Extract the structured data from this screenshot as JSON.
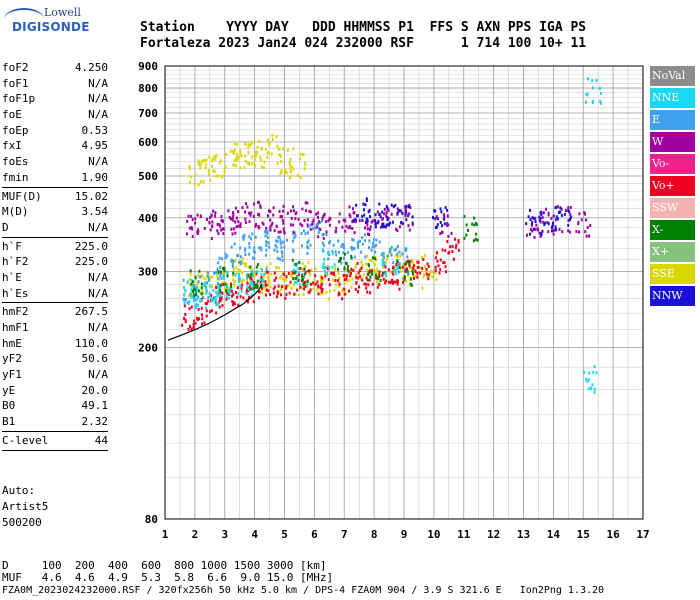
{
  "logo": {
    "brand": "Lowell",
    "product": "DIGISONDE"
  },
  "header": {
    "line1": "Station    YYYY DAY   DDD HHMMSS P1  FFS S AXN PPS IGA PS",
    "line2": "Fortaleza 2023 Jan24 024 232000 RSF      1 714 100 10+ 11"
  },
  "params": [
    {
      "label": "foF2",
      "value": "4.250"
    },
    {
      "label": "foF1",
      "value": "N/A"
    },
    {
      "label": "foF1p",
      "value": "N/A"
    },
    {
      "label": "foE",
      "value": "N/A"
    },
    {
      "label": "foEp",
      "value": "0.53"
    },
    {
      "label": "fxI",
      "value": "4.95"
    },
    {
      "label": "foEs",
      "value": "N/A"
    },
    {
      "label": "fmin",
      "value": "1.90"
    },
    {
      "sep": true
    },
    {
      "label": "MUF(D)",
      "value": "15.02"
    },
    {
      "label": "M(D)",
      "value": "3.54"
    },
    {
      "label": "D",
      "value": "N/A"
    },
    {
      "sep": true
    },
    {
      "label": "h`F",
      "value": "225.0"
    },
    {
      "label": "h`F2",
      "value": "225.0"
    },
    {
      "label": "h`E",
      "value": "N/A"
    },
    {
      "label": "h`Es",
      "value": "N/A"
    },
    {
      "sep": true
    },
    {
      "label": "hmF2",
      "value": "267.5"
    },
    {
      "label": "hmF1",
      "value": "N/A"
    },
    {
      "label": "hmE",
      "value": "110.0"
    },
    {
      "label": "yF2",
      "value": "50.6"
    },
    {
      "label": "yF1",
      "value": "N/A"
    },
    {
      "label": "yE",
      "value": "20.0"
    },
    {
      "label": "B0",
      "value": "49.1"
    },
    {
      "label": "B1",
      "value": "2.32"
    },
    {
      "sep": true
    },
    {
      "label": "C-level",
      "value": "44"
    },
    {
      "sep": true
    }
  ],
  "auto": {
    "line1": "Auto:",
    "line2": "Artist5",
    "line3": "500200"
  },
  "legend": [
    {
      "label": "NoVal",
      "bg": "#8c8c8c",
      "fg": "#ffffff"
    },
    {
      "label": "NNE",
      "bg": "#1ad8f0",
      "fg": "#ffffff"
    },
    {
      "label": "E",
      "bg": "#3fa0f0",
      "fg": "#ffffff"
    },
    {
      "label": "W",
      "bg": "#a000a0",
      "fg": "#ffffff"
    },
    {
      "label": "Vo-",
      "bg": "#f0208c",
      "fg": "#ffffff"
    },
    {
      "label": "Vo+",
      "bg": "#ee0022",
      "fg": "#ffffff"
    },
    {
      "label": "SSW",
      "bg": "#f5b2b2",
      "fg": "#ffffff"
    },
    {
      "label": "X-",
      "bg": "#008000",
      "fg": "#ffffff"
    },
    {
      "label": "X+",
      "bg": "#88c080",
      "fg": "#ffffff"
    },
    {
      "label": "SSE",
      "bg": "#d8d800",
      "fg": "#ffffff"
    },
    {
      "label": "NNW",
      "bg": "#1a10d8",
      "fg": "#ffffff"
    }
  ],
  "footer": {
    "line1": "D     100  200  400  600  800 1000 1500 3000 [km]",
    "line2": "MUF   4.6  4.6  4.9  5.3  5.8  6.6  9.0 15.0 [MHz]",
    "line3": "FZA0M_2023024232000.RSF / 320fx256h 50 kHz 5.0 km / DPS-4 FZA0M 904 / 3.9 S 321.6 E   Ion2Png 1.3.20"
  },
  "chart_data": {
    "type": "scatter",
    "title": "",
    "xlabel": "",
    "ylabel": "",
    "x_ticks": [
      1,
      2,
      3,
      4,
      5,
      6,
      7,
      8,
      9,
      10,
      11,
      12,
      13,
      14,
      15,
      16,
      17
    ],
    "y_ticks": [
      80,
      200,
      300,
      400,
      500,
      600,
      700,
      800,
      900
    ],
    "xlim": [
      1,
      17
    ],
    "ylim": [
      80,
      900
    ],
    "y_scale": "log",
    "grid": true,
    "legend_position": "right",
    "trace_profile": {
      "name": "",
      "x": [
        1.1,
        1.5,
        2.0,
        2.5,
        3.0,
        3.3,
        3.6,
        3.9,
        4.1,
        4.25
      ],
      "y": [
        208,
        213,
        220,
        228,
        238,
        245,
        252,
        262,
        270,
        280
      ]
    },
    "clusters": [
      {
        "name": "SSE",
        "x": [
          2.0,
          2.4,
          2.8,
          3.2,
          3.5,
          3.8,
          4.2,
          4.6,
          5.0,
          5.4,
          5.8,
          6.2,
          6.6,
          7.0,
          7.4,
          7.8,
          8.2,
          8.6,
          9.0,
          9.4,
          9.8
        ],
        "y": [
          280,
          285,
          290,
          295,
          300,
          305,
          290,
          295,
          280,
          285,
          300,
          275,
          290,
          285,
          300,
          310,
          305,
          320,
          300,
          295,
          310
        ]
      },
      {
        "name": "SSE",
        "x": [
          2.0,
          2.4,
          2.8,
          3.2,
          3.5,
          3.9,
          4.2,
          4.6,
          5.0,
          5.4
        ],
        "y": [
          510,
          520,
          535,
          550,
          560,
          575,
          560,
          590,
          545,
          530
        ]
      },
      {
        "name": "E",
        "x": [
          1.8,
          2.2,
          2.6,
          3.0,
          3.4,
          3.8,
          4.2,
          4.6,
          5.0,
          5.5,
          6.0,
          6.5,
          7.0,
          7.5,
          8.0,
          8.5,
          9.0
        ],
        "y": [
          270,
          275,
          290,
          310,
          330,
          345,
          350,
          360,
          340,
          355,
          370,
          345,
          335,
          350,
          340,
          330,
          320
        ]
      },
      {
        "name": "W",
        "x": [
          1.9,
          2.3,
          2.7,
          3.1,
          3.5,
          3.9,
          4.3,
          4.7,
          5.1,
          5.5,
          6.0,
          6.5,
          7.0,
          7.5,
          8.0,
          8.5,
          9.0,
          10.3,
          13.3,
          13.8,
          14.3,
          15.0
        ],
        "y": [
          380,
          385,
          390,
          395,
          400,
          410,
          405,
          400,
          395,
          410,
          390,
          385,
          400,
          395,
          390,
          395,
          400,
          390,
          380,
          395,
          400,
          390
        ]
      },
      {
        "name": "Vo+",
        "x": [
          1.8,
          2.2,
          2.6,
          3.0,
          3.4,
          3.7,
          4.0,
          4.4,
          4.8,
          5.2,
          5.6,
          6.0,
          6.4,
          6.8,
          7.2,
          7.6,
          8.0,
          8.4,
          8.8,
          9.2,
          9.6,
          10.2,
          10.6
        ],
        "y": [
          235,
          245,
          260,
          265,
          270,
          275,
          280,
          285,
          280,
          285,
          290,
          285,
          290,
          280,
          290,
          295,
          285,
          300,
          295,
          300,
          305,
          320,
          345
        ]
      },
      {
        "name": "NNW",
        "x": [
          7.5,
          8.0,
          8.5,
          9.0,
          10.2,
          13.3,
          13.8,
          14.3
        ],
        "y": [
          420,
          410,
          405,
          415,
          400,
          395,
          390,
          405
        ]
      },
      {
        "name": "NNE",
        "x": [
          1.8,
          2.1,
          2.5,
          2.9,
          3.3,
          3.7,
          4.1,
          5.5,
          6.5,
          8.5,
          15.2,
          15.3
        ],
        "y": [
          260,
          270,
          265,
          275,
          280,
          285,
          290,
          300,
          320,
          310,
          170,
          790
        ]
      },
      {
        "name": "X-",
        "x": [
          2.0,
          3.0,
          4.0,
          5.5,
          7.0,
          8.0,
          9.0,
          11.2
        ],
        "y": [
          285,
          290,
          295,
          300,
          310,
          305,
          300,
          380
        ]
      }
    ]
  }
}
